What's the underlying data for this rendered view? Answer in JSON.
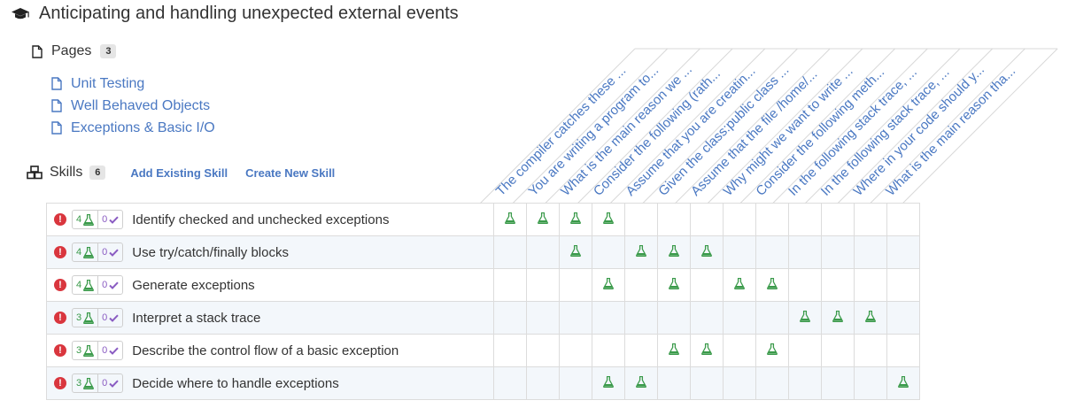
{
  "title": "Anticipating and handling unexpected external events",
  "pages": {
    "label": "Pages",
    "count": "3",
    "items": [
      {
        "label": "Unit Testing"
      },
      {
        "label": "Well Behaved Objects"
      },
      {
        "label": "Exceptions & Basic I/O"
      }
    ]
  },
  "skills": {
    "label": "Skills",
    "count": "6",
    "add_existing": "Add Existing Skill",
    "create_new": "Create New Skill"
  },
  "columns": [
    "The compiler catches these ...",
    "You are writing a program to...",
    "What is the main reason we ...",
    "Consider the following (rath...",
    "Assume that you are creatin...",
    "Given the class:public class ...",
    "Assume that the file /home/...",
    "Why might we want to write ...",
    "Consider the following meth...",
    "In the following stack trace, ...",
    "In the following stack trace, ...",
    "Where in your code should y...",
    "What is the main reason tha..."
  ],
  "rows": [
    {
      "name": "Identify checked and unchecked exceptions",
      "questions": "4",
      "checks": "0",
      "marks": [
        0,
        1,
        2,
        3
      ]
    },
    {
      "name": "Use try/catch/finally blocks",
      "questions": "4",
      "checks": "0",
      "marks": [
        2,
        4,
        5,
        6
      ]
    },
    {
      "name": "Generate exceptions",
      "questions": "4",
      "checks": "0",
      "marks": [
        3,
        5,
        7,
        8
      ]
    },
    {
      "name": "Interpret a stack trace",
      "questions": "3",
      "checks": "0",
      "marks": [
        9,
        10,
        11
      ]
    },
    {
      "name": "Describe the control flow of a basic exception",
      "questions": "3",
      "checks": "0",
      "marks": [
        5,
        6,
        8
      ]
    },
    {
      "name": "Decide where to handle exceptions",
      "questions": "3",
      "checks": "0",
      "marks": [
        3,
        4,
        12
      ]
    }
  ],
  "icons": {
    "title": "graduation-cap-icon",
    "pages": "file-icon",
    "page_item": "file-icon",
    "skills": "cubes-icon",
    "warning": "exclamation-circle-icon",
    "question": "flask-icon",
    "check": "check-icon"
  },
  "colors": {
    "link": "#4a78c2",
    "flask": "#3a9a4a",
    "check": "#8a5cc2",
    "warning": "#d9363e",
    "alt_row": "#f3f7fb"
  }
}
